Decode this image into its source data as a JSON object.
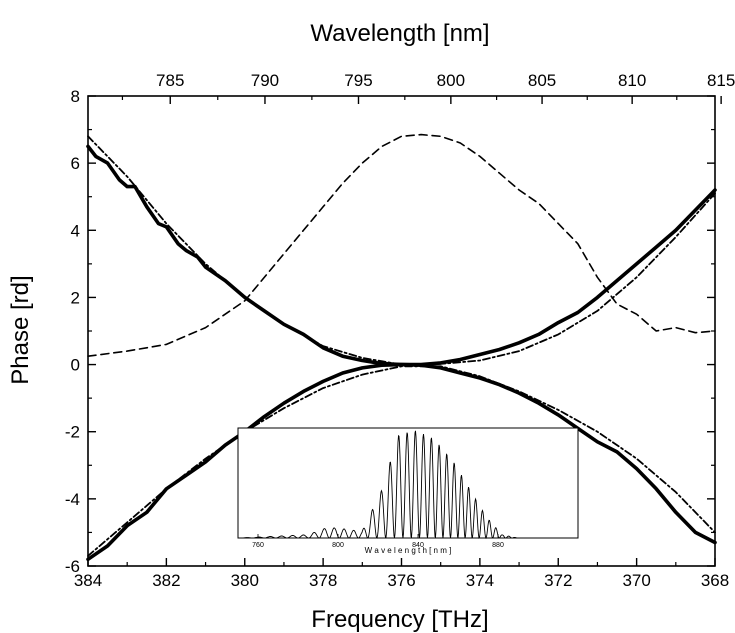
{
  "chart_data": {
    "type": "line",
    "xlabel": "Frequency [THz]",
    "ylabel": "Phase [rd]",
    "top_axis_label": "Wavelength [nm]",
    "xlim": [
      384,
      368
    ],
    "ylim": [
      -6,
      8
    ],
    "x_ticks": [
      "384",
      "382",
      "380",
      "378",
      "376",
      "374",
      "372",
      "370",
      "368"
    ],
    "y_ticks": [
      "-6",
      "-4",
      "-2",
      "0",
      "2",
      "4",
      "6",
      "8"
    ],
    "top_ticks": [
      "785",
      "790",
      "795",
      "800",
      "805",
      "810",
      "815"
    ],
    "x_tick_values": [
      384,
      382,
      380,
      378,
      376,
      374,
      372,
      370,
      368
    ],
    "y_tick_values": [
      -6,
      -4,
      -2,
      0,
      2,
      4,
      6,
      8
    ],
    "top_tick_values": [
      785,
      790,
      795,
      800,
      805,
      810,
      815
    ],
    "grid": false,
    "series": [
      {
        "style": "solid-thick",
        "x": [
          384,
          383.8,
          383.5,
          383.2,
          383,
          382.8,
          382.5,
          382.2,
          382,
          381.7,
          381.5,
          381.2,
          381,
          380.5,
          380,
          379.5,
          379,
          378.5,
          378,
          377.5,
          377,
          376.5,
          376,
          375.5,
          375,
          374.5,
          374,
          373.5,
          373,
          372.5,
          372,
          371.5,
          371,
          370.5,
          370,
          369.5,
          369,
          368.5,
          368
        ],
        "y": [
          6.5,
          6.2,
          6.0,
          5.5,
          5.3,
          5.3,
          4.7,
          4.2,
          4.1,
          3.6,
          3.4,
          3.2,
          2.9,
          2.5,
          2.0,
          1.6,
          1.2,
          0.9,
          0.5,
          0.25,
          0.12,
          0.03,
          0.0,
          0.0,
          0.05,
          0.15,
          0.3,
          0.45,
          0.65,
          0.9,
          1.25,
          1.55,
          2.0,
          2.5,
          3.0,
          3.5,
          4.0,
          4.6,
          5.2
        ]
      },
      {
        "style": "dash-dot",
        "x": [
          384,
          383,
          382,
          381,
          380,
          379,
          378,
          377,
          376,
          375,
          374,
          373,
          372,
          371,
          370,
          369,
          368
        ],
        "y": [
          6.8,
          5.6,
          4.2,
          3.0,
          2.0,
          1.2,
          0.55,
          0.2,
          0.0,
          0.02,
          0.12,
          0.4,
          0.9,
          1.6,
          2.6,
          3.8,
          5.1
        ]
      },
      {
        "style": "solid-thick",
        "x": [
          384,
          383.5,
          383,
          382.5,
          382,
          381.5,
          381,
          380.5,
          380,
          379.5,
          379,
          378.5,
          378,
          377.5,
          377,
          376.5,
          376,
          375.5,
          375,
          374.5,
          374,
          373.5,
          373,
          372.5,
          372,
          371.5,
          371,
          370.5,
          370,
          369.5,
          369,
          368.5,
          368
        ],
        "y": [
          -5.8,
          -5.4,
          -4.8,
          -4.4,
          -3.7,
          -3.3,
          -2.9,
          -2.4,
          -2.0,
          -1.55,
          -1.15,
          -0.8,
          -0.5,
          -0.25,
          -0.1,
          -0.02,
          0.0,
          -0.02,
          -0.1,
          -0.25,
          -0.4,
          -0.6,
          -0.85,
          -1.15,
          -1.5,
          -1.9,
          -2.3,
          -2.6,
          -3.1,
          -3.7,
          -4.4,
          -5.0,
          -5.3
        ]
      },
      {
        "style": "dash-dot",
        "x": [
          384,
          383,
          382,
          381,
          380,
          379,
          378,
          377,
          376,
          375,
          374,
          373,
          372,
          371,
          370,
          369,
          368
        ],
        "y": [
          -5.7,
          -4.7,
          -3.7,
          -2.8,
          -2.0,
          -1.3,
          -0.7,
          -0.3,
          -0.05,
          -0.05,
          -0.35,
          -0.8,
          -1.35,
          -2.0,
          -2.8,
          -3.8,
          -5.0
        ]
      },
      {
        "style": "dashed",
        "x": [
          384,
          383,
          382,
          381,
          380,
          379,
          378.5,
          378,
          377.5,
          377,
          376.5,
          376,
          375.5,
          375,
          374.5,
          374,
          373.5,
          373,
          372.5,
          372,
          371.5,
          371,
          370.5,
          370,
          369.5,
          369,
          368.5,
          368
        ],
        "y": [
          0.25,
          0.4,
          0.6,
          1.1,
          1.9,
          3.3,
          4.0,
          4.7,
          5.4,
          6.0,
          6.5,
          6.8,
          6.85,
          6.8,
          6.6,
          6.2,
          5.7,
          5.2,
          4.8,
          4.2,
          3.6,
          2.6,
          1.8,
          1.5,
          1.0,
          1.1,
          0.95,
          1.0
        ]
      }
    ],
    "inset": {
      "xlabel": "W a v e l e n g t h  [ n m ]",
      "x_ticks": [
        "760",
        "800",
        "840",
        "880"
      ],
      "x_tick_values": [
        760,
        800,
        840,
        880
      ],
      "xlim": [
        750,
        920
      ],
      "ylim": [
        0,
        1
      ],
      "envelope": [
        [
          750,
          0
        ],
        [
          785,
          0.03
        ],
        [
          795,
          0.1
        ],
        [
          805,
          0.08
        ],
        [
          812,
          0.06
        ],
        [
          822,
          0.45
        ],
        [
          830,
          0.95
        ],
        [
          838,
          1.0
        ],
        [
          848,
          0.92
        ],
        [
          858,
          0.7
        ],
        [
          866,
          0.45
        ],
        [
          874,
          0.2
        ],
        [
          882,
          0.03
        ],
        [
          890,
          0
        ],
        [
          920,
          0
        ]
      ]
    }
  }
}
